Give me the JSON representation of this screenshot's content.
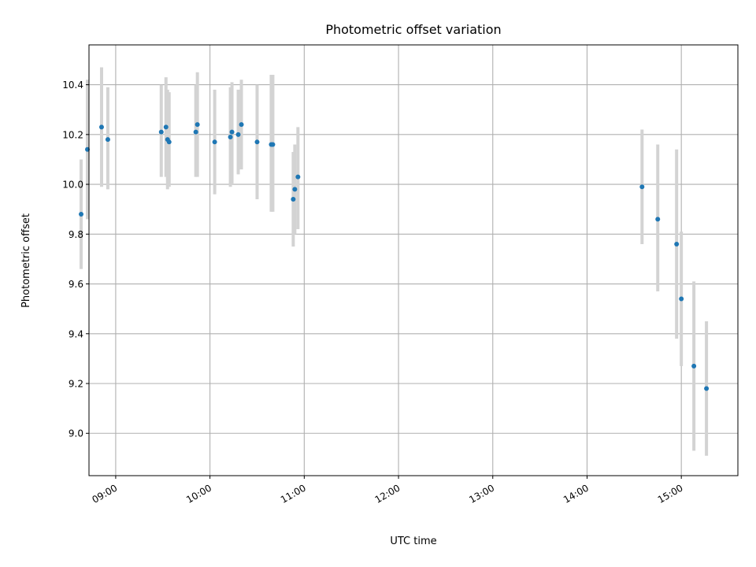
{
  "chart_data": {
    "type": "scatter",
    "title": "Photometric offset variation",
    "xlabel": "UTC time",
    "ylabel": "Photometric offset",
    "x_ticks": [
      "09:00",
      "10:00",
      "11:00",
      "12:00",
      "13:00",
      "14:00",
      "15:00"
    ],
    "y_ticks": [
      "9.0",
      "9.2",
      "9.4",
      "9.6",
      "9.8",
      "10.0",
      "10.2",
      "10.4"
    ],
    "xlim": [
      "08:43",
      "15:36"
    ],
    "ylim": [
      8.83,
      10.56
    ],
    "grid": true,
    "colors": {
      "points": "#1f77b4",
      "error_bars": "#d3d3d3",
      "grid": "#b0b0b0"
    },
    "points": [
      {
        "x": "08:38",
        "y": 9.88,
        "err_low": 9.66,
        "err_high": 10.1
      },
      {
        "x": "08:42",
        "y": 10.14,
        "err_low": 9.86,
        "err_high": 10.42
      },
      {
        "x": "08:51",
        "y": 10.23,
        "err_low": 9.99,
        "err_high": 10.47
      },
      {
        "x": "08:55",
        "y": 10.18,
        "err_low": 9.98,
        "err_high": 10.39
      },
      {
        "x": "09:29",
        "y": 10.21,
        "err_low": 10.03,
        "err_high": 10.4
      },
      {
        "x": "09:32",
        "y": 10.23,
        "err_low": 10.03,
        "err_high": 10.43
      },
      {
        "x": "09:33",
        "y": 10.18,
        "err_low": 9.98,
        "err_high": 10.38
      },
      {
        "x": "09:34",
        "y": 10.17,
        "err_low": 9.99,
        "err_high": 10.37
      },
      {
        "x": "09:51",
        "y": 10.21,
        "err_low": 10.03,
        "err_high": 10.4
      },
      {
        "x": "09:52",
        "y": 10.24,
        "err_low": 10.03,
        "err_high": 10.45
      },
      {
        "x": "10:03",
        "y": 10.17,
        "err_low": 9.96,
        "err_high": 10.38
      },
      {
        "x": "10:13",
        "y": 10.19,
        "err_low": 9.99,
        "err_high": 10.39
      },
      {
        "x": "10:14",
        "y": 10.21,
        "err_low": 10.0,
        "err_high": 10.41
      },
      {
        "x": "10:18",
        "y": 10.2,
        "err_low": 10.04,
        "err_high": 10.38
      },
      {
        "x": "10:20",
        "y": 10.24,
        "err_low": 10.06,
        "err_high": 10.42
      },
      {
        "x": "10:30",
        "y": 10.17,
        "err_low": 9.94,
        "err_high": 10.4
      },
      {
        "x": "10:39",
        "y": 10.16,
        "err_low": 9.89,
        "err_high": 10.44
      },
      {
        "x": "10:40",
        "y": 10.16,
        "err_low": 9.89,
        "err_high": 10.44
      },
      {
        "x": "10:53",
        "y": 9.94,
        "err_low": 9.75,
        "err_high": 10.13
      },
      {
        "x": "10:54",
        "y": 9.98,
        "err_low": 9.8,
        "err_high": 10.16
      },
      {
        "x": "10:56",
        "y": 10.03,
        "err_low": 9.82,
        "err_high": 10.23
      },
      {
        "x": "14:35",
        "y": 9.99,
        "err_low": 9.76,
        "err_high": 10.22
      },
      {
        "x": "14:45",
        "y": 9.86,
        "err_low": 9.57,
        "err_high": 10.16
      },
      {
        "x": "14:57",
        "y": 9.76,
        "err_low": 9.38,
        "err_high": 10.14
      },
      {
        "x": "15:00",
        "y": 9.54,
        "err_low": 9.27,
        "err_high": 9.81
      },
      {
        "x": "15:08",
        "y": 9.27,
        "err_low": 8.93,
        "err_high": 9.61
      },
      {
        "x": "15:16",
        "y": 9.18,
        "err_low": 8.91,
        "err_high": 9.45
      }
    ]
  }
}
